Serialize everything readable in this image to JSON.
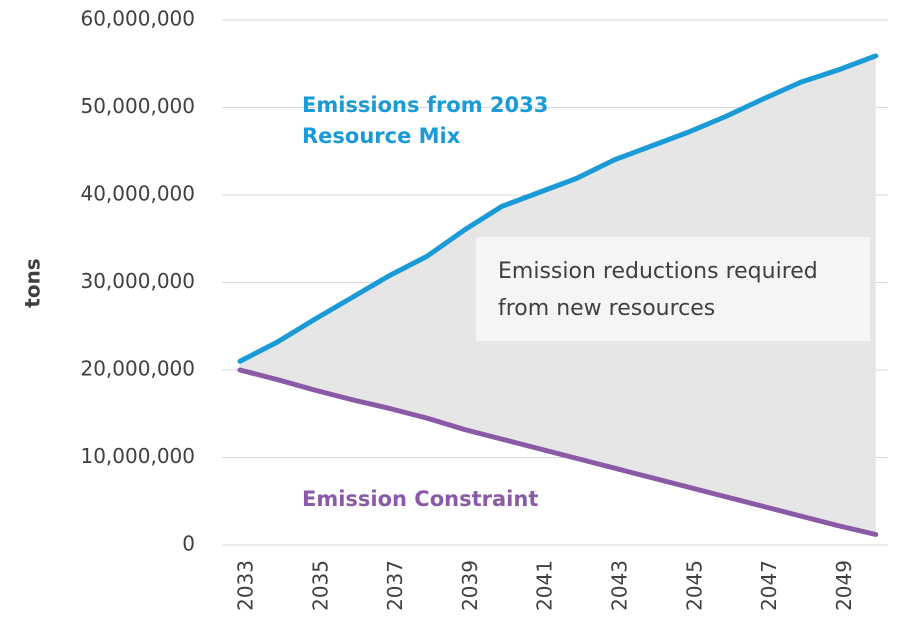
{
  "chart_data": {
    "type": "line",
    "categories": [
      "2033",
      null,
      "2035",
      null,
      "2037",
      null,
      "2039",
      null,
      "2041",
      null,
      "2043",
      null,
      "2045",
      null,
      "2047",
      null,
      "2049",
      null
    ],
    "series": [
      {
        "name": "Emissions from 2033 Resource Mix",
        "color": "#1a9ad6",
        "values": [
          21000000,
          23200000,
          25800000,
          28300000,
          30800000,
          33000000,
          36000000,
          38700000,
          40300000,
          41900000,
          44000000,
          45600000,
          47200000,
          49000000,
          51000000,
          52900000,
          54300000,
          55900000
        ]
      },
      {
        "name": "Emission Constraint",
        "color": "#8a5aa6",
        "values": [
          20000000,
          18900000,
          17700000,
          16600000,
          15600000,
          14500000,
          13200000,
          12100000,
          11000000,
          9900000,
          8800000,
          7700000,
          6600000,
          5500000,
          4400000,
          3300000,
          2200000,
          1200000
        ]
      }
    ],
    "area_color": "#e6e6e6",
    "annotation": "Emission reductions required from new resources",
    "ylabel": "tons",
    "ylim": [
      0,
      60000000
    ],
    "yticks": [
      0,
      {
        "value": 10000000,
        "label": "10,000,000"
      },
      {
        "value": 20000000,
        "label": "20,000,000"
      },
      {
        "value": 30000000,
        "label": "30,000,000"
      },
      {
        "value": 40000000,
        "label": "40,000,000"
      },
      {
        "value": 50000000,
        "label": "50,000,000"
      },
      {
        "value": 60000000,
        "label": "60,000,000"
      }
    ],
    "grid": true
  }
}
